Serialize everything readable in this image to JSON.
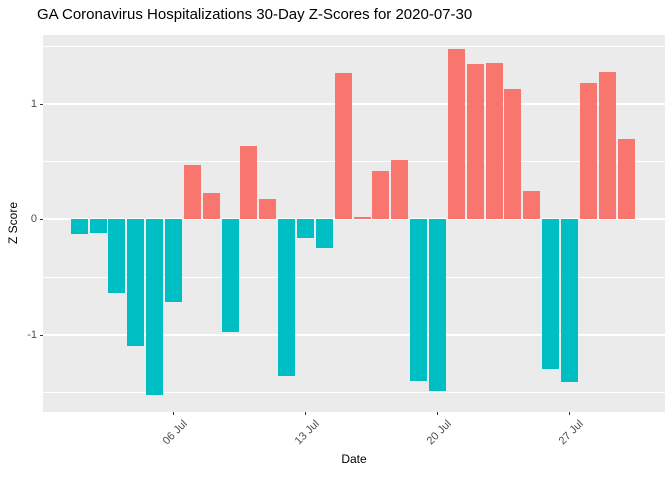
{
  "chart_data": {
    "type": "bar",
    "title": "GA Coronavirus Hospitalizations 30-Day Z-Scores for 2020-07-30",
    "xlabel": "Date",
    "ylabel": "Z Score",
    "x": [
      "2020-07-01",
      "2020-07-02",
      "2020-07-03",
      "2020-07-04",
      "2020-07-05",
      "2020-07-06",
      "2020-07-07",
      "2020-07-08",
      "2020-07-09",
      "2020-07-10",
      "2020-07-11",
      "2020-07-12",
      "2020-07-13",
      "2020-07-14",
      "2020-07-15",
      "2020-07-16",
      "2020-07-17",
      "2020-07-18",
      "2020-07-19",
      "2020-07-20",
      "2020-07-21",
      "2020-07-22",
      "2020-07-23",
      "2020-07-24",
      "2020-07-25",
      "2020-07-26",
      "2020-07-27",
      "2020-07-28",
      "2020-07-29",
      "2020-07-30"
    ],
    "values": [
      -0.13,
      -0.12,
      -0.64,
      -1.1,
      -1.52,
      -0.72,
      0.47,
      0.23,
      -0.98,
      0.64,
      0.18,
      -1.36,
      -0.16,
      -0.25,
      1.27,
      0.02,
      0.42,
      0.52,
      -1.4,
      -1.49,
      1.48,
      1.35,
      1.36,
      1.13,
      0.25,
      -1.3,
      -1.41,
      1.18,
      1.28,
      0.7
    ],
    "x_tick_days": [
      6,
      13,
      20,
      27
    ],
    "x_tick_labels": [
      "06 Jul",
      "13 Jul",
      "20 Jul",
      "27 Jul"
    ],
    "y_ticks": [
      -1,
      0,
      1
    ],
    "y_tick_labels": [
      "-1",
      "0",
      "1"
    ],
    "y_minor_ticks": [
      -1.5,
      -0.5,
      0.5,
      1.5
    ],
    "ylim": [
      -1.67,
      1.6
    ],
    "grid": "on",
    "legend_position": "none",
    "bar_width_ratio": 0.9,
    "colors": {
      "positive_bar": "#F8766D",
      "negative_bar": "#00BFC4",
      "panel_background": "#EBEBEB",
      "gridline": "#FFFFFF",
      "axis_text": "#4D4D4D",
      "title_text": "#000000",
      "tick_mark": "#333333",
      "page_background": "#FFFFFF"
    }
  }
}
